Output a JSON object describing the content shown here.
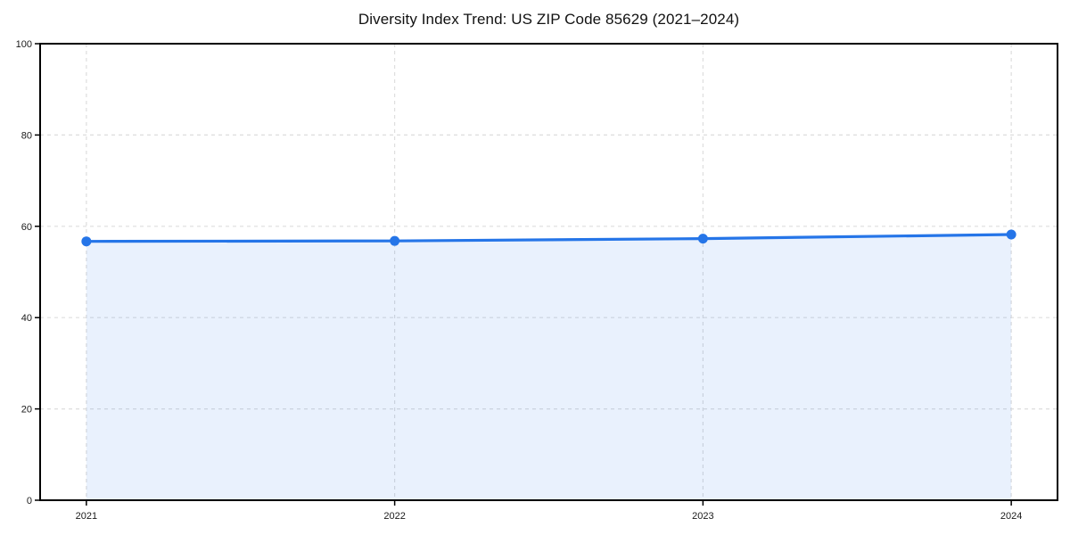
{
  "chart_data": {
    "type": "area",
    "title": "Diversity Index Trend: US ZIP Code 85629 (2021–2024)",
    "x": [
      2021,
      2022,
      2023,
      2024
    ],
    "series": [
      {
        "name": "Diversity Index",
        "values": [
          56.7,
          56.8,
          57.3,
          58.2
        ]
      }
    ],
    "xlabel": "",
    "ylabel": "",
    "ylim": [
      0,
      100
    ],
    "yticks": [
      0,
      20,
      40,
      60,
      80,
      100
    ],
    "xticks": [
      2021,
      2022,
      2023,
      2024
    ],
    "xtick_labels": [
      "2021",
      "2022",
      "2023",
      "2024"
    ],
    "grid": true,
    "grid_style": "dashed",
    "legend": false,
    "colors": {
      "line": "#2575e8",
      "marker": "#2575e8",
      "fill_rgba": "rgba(37,117,232,0.10)",
      "grid": "#dddddd",
      "spine": "#000000",
      "tick_label": "#1a1a1a",
      "title": "#111111",
      "background": "#ffffff"
    }
  }
}
